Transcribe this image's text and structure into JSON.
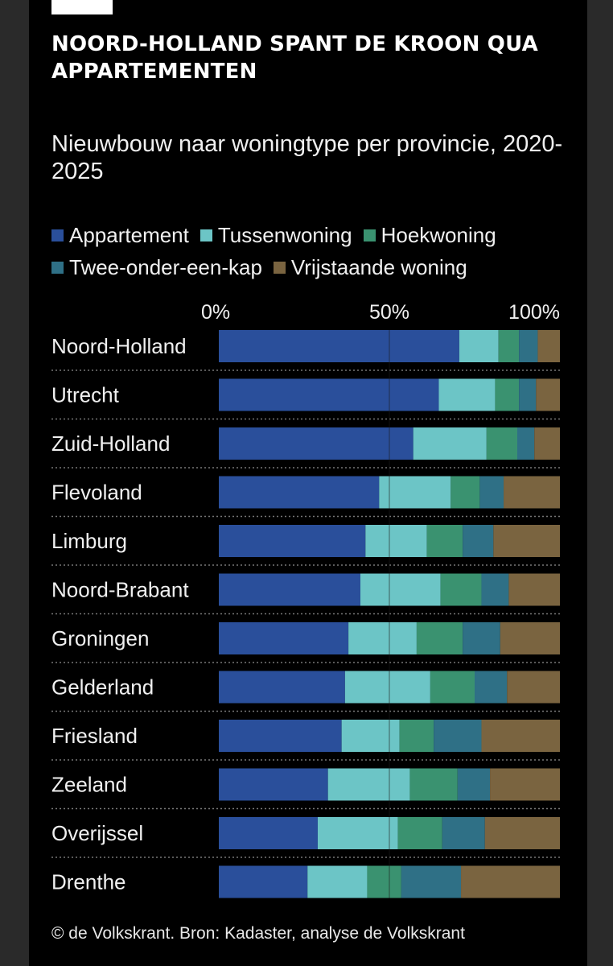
{
  "header": {
    "title": "NOORD-HOLLAND SPANT DE KROON QUA APPARTEMENTEN",
    "subtitle": "Nieuwbouw naar woningtype per provincie, 2020-2025"
  },
  "footer": {
    "credit": "© de Volkskrant. Bron: Kadaster, analyse de Volkskrant"
  },
  "colors": {
    "background": "#000000",
    "Appartement": "#2a4f9b",
    "Tussenwoning": "#6cc5c6",
    "Hoekwoning": "#3a9270",
    "Twee-onder-een-kap": "#2f7086",
    "Vrijstaande woning": "#7a6440"
  },
  "chart_data": {
    "type": "bar",
    "orientation": "horizontal",
    "stacked": true,
    "unit": "%",
    "xlim": [
      0,
      100
    ],
    "x_ticks": [
      "0%",
      "50%",
      "100%"
    ],
    "tick_values": [
      0,
      50,
      100
    ],
    "legend_placement": "top",
    "categories": [
      "Noord-Holland",
      "Utrecht",
      "Zuid-Holland",
      "Flevoland",
      "Limburg",
      "Noord-Brabant",
      "Groningen",
      "Gelderland",
      "Friesland",
      "Zeeland",
      "Overijssel",
      "Drenthe"
    ],
    "series": [
      {
        "name": "Appartement",
        "values": [
          70.5,
          64.5,
          57,
          47,
          43,
          41.5,
          38,
          37,
          36,
          32,
          29,
          26
        ]
      },
      {
        "name": "Tussenwoning",
        "values": [
          11.5,
          16.5,
          21.5,
          21,
          18,
          23.5,
          20,
          25,
          17,
          24,
          23.5,
          17.5
        ]
      },
      {
        "name": "Hoekwoning",
        "values": [
          6,
          7,
          9,
          8.5,
          10.5,
          12,
          13.5,
          13,
          10,
          14,
          13,
          10
        ]
      },
      {
        "name": "Twee-onder-een-kap",
        "values": [
          5.5,
          5,
          5,
          7,
          9,
          8,
          11,
          9.5,
          14,
          9.5,
          12.5,
          17.5
        ]
      },
      {
        "name": "Vrijstaande woning",
        "values": [
          6.5,
          7,
          7.5,
          16.5,
          19.5,
          15,
          17.5,
          15.5,
          23,
          20.5,
          22,
          29
        ]
      }
    ]
  }
}
